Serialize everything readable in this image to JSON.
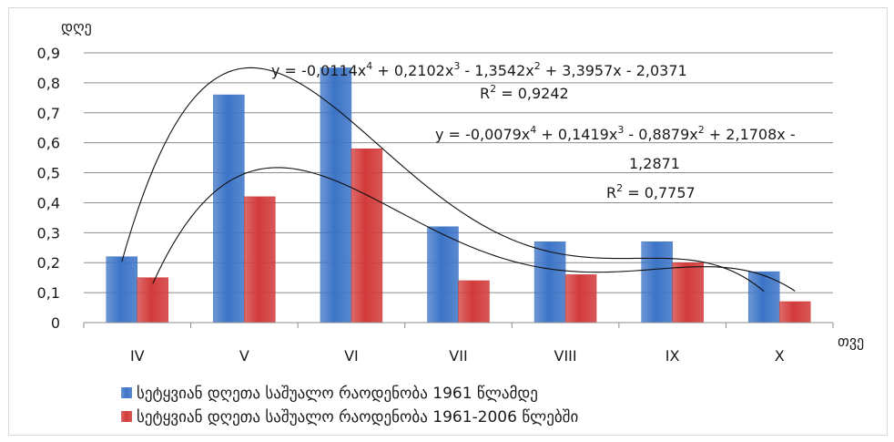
{
  "chart_data": {
    "type": "bar",
    "ylabel": "დღე",
    "xlabel": "თვე",
    "ylim": [
      0,
      0.9
    ],
    "y_ticks": [
      "0",
      "0,1",
      "0,2",
      "0,3",
      "0,4",
      "0,5",
      "0,6",
      "0,7",
      "0,8",
      "0,9"
    ],
    "grid": true,
    "legend_position": "bottom-left",
    "categories": [
      "IV",
      "V",
      "VI",
      "VII",
      "VIII",
      "IX",
      "X"
    ],
    "series": [
      {
        "name": "სეტყვიან დღეთა საშუალო რაოდენობა 1961 წლამდე",
        "color": "#3c74c7",
        "values": [
          0.22,
          0.76,
          0.85,
          0.32,
          0.27,
          0.27,
          0.17
        ]
      },
      {
        "name": "სეტყვიან დღეთა საშუალო რაოდენობა 1961-2006 წლებში",
        "color": "#d23a3a",
        "values": [
          0.15,
          0.42,
          0.58,
          0.14,
          0.16,
          0.2,
          0.07
        ]
      }
    ],
    "trendlines": [
      {
        "type": "polynomial",
        "order": 4,
        "coefficients": [
          -0.0114,
          0.2102,
          -1.3542,
          3.3957,
          -2.0371
        ],
        "equation_parts": [
          "y = -0,0114x",
          "4",
          " + 0,2102x",
          "3",
          " - 1,3542x",
          "2",
          " + 3,3957x - 2,0371"
        ],
        "r2_label": "R",
        "r2_sup": "2",
        "r2_value": " = 0,9242"
      },
      {
        "type": "polynomial",
        "order": 4,
        "coefficients": [
          -0.0079,
          0.1419,
          -0.8879,
          2.1708,
          -1.2871
        ],
        "equation_parts": [
          "y = -0,0079x",
          "4",
          " + 0,1419x",
          "3",
          " - 0,8879x",
          "2",
          " + 2,1708x -"
        ],
        "equation_line2": "1,2871",
        "r2_label": "R",
        "r2_sup": "2",
        "r2_value": " = 0,7757"
      }
    ]
  }
}
